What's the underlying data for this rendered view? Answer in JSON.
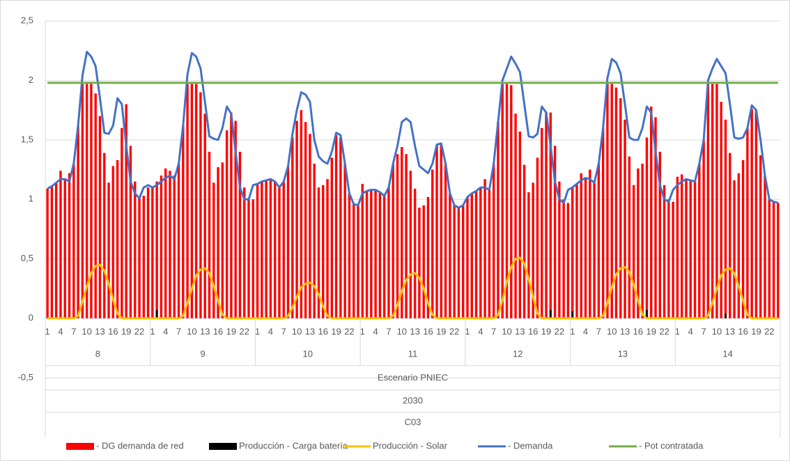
{
  "chart_data": {
    "type": "bar-line",
    "categories": [
      "1",
      null,
      null,
      "4",
      null,
      null,
      "7",
      null,
      null,
      "10",
      null,
      null,
      "13",
      null,
      null,
      "16",
      null,
      null,
      "19",
      null,
      null,
      "22",
      null,
      null,
      "1",
      null,
      null,
      "4",
      null,
      null,
      "7",
      null,
      null,
      "10",
      null,
      null,
      "13",
      null,
      null,
      "16",
      null,
      null,
      "19",
      null,
      null,
      "22",
      null,
      null,
      "1",
      null,
      null,
      "4",
      null,
      null,
      "7",
      null,
      null,
      "10",
      null,
      null,
      "13",
      null,
      null,
      "16",
      null,
      null,
      "19",
      null,
      null,
      "22",
      null,
      null,
      "1",
      null,
      null,
      "4",
      null,
      null,
      "7",
      null,
      null,
      "10",
      null,
      null,
      "13",
      null,
      null,
      "16",
      null,
      null,
      "19",
      null,
      null,
      "22",
      null,
      null,
      "1",
      null,
      null,
      "4",
      null,
      null,
      "7",
      null,
      null,
      "10",
      null,
      null,
      "13",
      null,
      null,
      "16",
      null,
      null,
      "19",
      null,
      null,
      "22",
      null,
      null,
      "1",
      null,
      null,
      "4",
      null,
      null,
      "7",
      null,
      null,
      "10",
      null,
      null,
      "13",
      null,
      null,
      "16",
      null,
      null,
      "19",
      null,
      null,
      "22",
      null,
      null,
      "1",
      null,
      null,
      "4",
      null,
      null,
      "7",
      null,
      null,
      "10",
      null,
      null,
      "13",
      null,
      null,
      "16",
      null,
      null,
      "19",
      null,
      null,
      "22",
      null,
      null
    ],
    "groups": [
      "8",
      "9",
      "10",
      "11",
      "12",
      "13",
      "14"
    ],
    "x_levels": [
      "Escenario PNIEC",
      "2030",
      "C03"
    ],
    "ylim": [
      -1,
      2.5
    ],
    "yticks": [
      {
        "value": -0.5,
        "label": "-0,5"
      },
      0,
      {
        "value": 0.5,
        "label": "0,5"
      },
      1,
      {
        "value": 1.5,
        "label": "1,5"
      },
      2,
      {
        "value": 2.5,
        "label": "2,5"
      }
    ],
    "grid": true,
    "series": [
      {
        "name": "- DG demanda de red",
        "kind": "bar",
        "color": "#ff0000",
        "values": [
          1.09,
          1.11,
          1.14,
          1.24,
          1.17,
          1.22,
          1.3,
          1.62,
          1.97,
          1.97,
          1.97,
          1.89,
          1.7,
          1.39,
          1.14,
          1.28,
          1.33,
          1.6,
          1.8,
          1.45,
          1.15,
          1.02,
          1.03,
          1.1,
          1.1,
          1.15,
          1.2,
          1.26,
          1.24,
          1.2,
          1.3,
          1.62,
          1.97,
          1.97,
          1.97,
          1.9,
          1.72,
          1.4,
          1.14,
          1.27,
          1.31,
          1.58,
          1.73,
          1.66,
          1.4,
          1.1,
          1.0,
          1.0,
          1.13,
          1.15,
          1.16,
          1.17,
          1.15,
          1.1,
          1.15,
          1.28,
          1.52,
          1.66,
          1.75,
          1.65,
          1.55,
          1.3,
          1.1,
          1.12,
          1.17,
          1.35,
          1.54,
          1.52,
          1.3,
          1.05,
          0.96,
          0.95,
          1.13,
          1.07,
          1.08,
          1.08,
          1.06,
          1.03,
          1.1,
          1.3,
          1.38,
          1.44,
          1.38,
          1.24,
          1.09,
          0.93,
          0.95,
          1.02,
          1.25,
          1.46,
          1.47,
          1.3,
          1.05,
          0.95,
          0.93,
          0.95,
          1.02,
          1.05,
          1.07,
          1.1,
          1.17,
          1.08,
          1.3,
          1.65,
          1.97,
          1.97,
          1.96,
          1.72,
          1.57,
          1.29,
          1.06,
          1.14,
          1.35,
          1.6,
          1.73,
          1.73,
          1.45,
          1.15,
          1.0,
          0.97,
          1.1,
          1.13,
          1.22,
          1.18,
          1.25,
          1.14,
          1.3,
          1.6,
          1.97,
          1.97,
          1.94,
          1.85,
          1.67,
          1.36,
          1.12,
          1.26,
          1.3,
          1.52,
          1.78,
          1.69,
          1.4,
          1.12,
          1.0,
          0.98,
          1.19,
          1.21,
          1.17,
          1.16,
          1.15,
          1.3,
          1.5,
          1.97,
          1.97,
          1.97,
          1.82,
          1.67,
          1.39,
          1.16,
          1.22,
          1.33,
          1.6,
          1.76,
          1.75,
          1.37,
          1.2,
          1.0,
          0.98,
          0.97
        ]
      },
      {
        "name": "Producción - Carga batería",
        "kind": "bar",
        "color": "#000000",
        "values": [
          0,
          0,
          0,
          0,
          0,
          0,
          0,
          0,
          0,
          0,
          0,
          0,
          0,
          0,
          0,
          0,
          0,
          0,
          0,
          0,
          0,
          0,
          0,
          0,
          0,
          0.07,
          0,
          0,
          0,
          0,
          0,
          0,
          0,
          0,
          0,
          0,
          0,
          0,
          0,
          0,
          0,
          0,
          0,
          0,
          0,
          0,
          0,
          0,
          0,
          0,
          0,
          0,
          0,
          0,
          0,
          0,
          0,
          0,
          0,
          0,
          0,
          0,
          0,
          0,
          0,
          0,
          0,
          0,
          0,
          0,
          0,
          0,
          0,
          0,
          0,
          0,
          0,
          0,
          0,
          0,
          0,
          0,
          0,
          0,
          0,
          0,
          0,
          0,
          0,
          0,
          0,
          0,
          0,
          0,
          0,
          0,
          0,
          0,
          0,
          0,
          0,
          0,
          0,
          0,
          0,
          0,
          0,
          0,
          0,
          0,
          0,
          0,
          0,
          0,
          0,
          0.07,
          0,
          0,
          0,
          0,
          0.06,
          0,
          0,
          0,
          0,
          0,
          0,
          0,
          0,
          0,
          0,
          0,
          0,
          0,
          0,
          0,
          0,
          0.07,
          0,
          0,
          0,
          0,
          0,
          0,
          0,
          0,
          0,
          0,
          0,
          0,
          0,
          0,
          0,
          0,
          0,
          0.04,
          0,
          0,
          0,
          0,
          0,
          0,
          0,
          0,
          0,
          0,
          0,
          0
        ]
      },
      {
        "name": "Producción - Solar",
        "kind": "line",
        "color": "#ffc000",
        "values": [
          0,
          0,
          0,
          0,
          0,
          0,
          0,
          0.02,
          0.14,
          0.27,
          0.38,
          0.44,
          0.45,
          0.4,
          0.29,
          0.16,
          0.04,
          0,
          0,
          0,
          0,
          0,
          0,
          0,
          0,
          0,
          0,
          0,
          0,
          0,
          0,
          0.02,
          0.13,
          0.25,
          0.36,
          0.41,
          0.42,
          0.38,
          0.27,
          0.15,
          0.03,
          0,
          0,
          0,
          0,
          0,
          0,
          0,
          0,
          0,
          0,
          0,
          0,
          0,
          0,
          0.02,
          0.09,
          0.18,
          0.26,
          0.29,
          0.3,
          0.27,
          0.2,
          0.1,
          0.02,
          0,
          0,
          0,
          0,
          0,
          0,
          0,
          0,
          0,
          0,
          0,
          0,
          0,
          0,
          0.02,
          0.11,
          0.23,
          0.32,
          0.37,
          0.38,
          0.34,
          0.25,
          0.13,
          0.03,
          0,
          0,
          0,
          0,
          0,
          0,
          0,
          0,
          0,
          0,
          0,
          0,
          0,
          0,
          0.03,
          0.15,
          0.31,
          0.43,
          0.5,
          0.51,
          0.46,
          0.33,
          0.18,
          0.04,
          0,
          0,
          0,
          0,
          0,
          0,
          0,
          0,
          0,
          0,
          0,
          0,
          0,
          0,
          0.02,
          0.13,
          0.26,
          0.37,
          0.42,
          0.43,
          0.39,
          0.28,
          0.15,
          0.03,
          0,
          0,
          0,
          0,
          0,
          0,
          0,
          0,
          0,
          0,
          0,
          0,
          0,
          0,
          0.02,
          0.13,
          0.25,
          0.36,
          0.41,
          0.42,
          0.38,
          0.27,
          0.15,
          0.03,
          0,
          0,
          0,
          0,
          0,
          0,
          0
        ]
      },
      {
        "name": "- Demanda",
        "kind": "line",
        "color": "#4472c4",
        "values": [
          1.09,
          1.11,
          1.14,
          1.17,
          1.17,
          1.15,
          1.3,
          1.62,
          2.04,
          2.24,
          2.2,
          2.12,
          1.85,
          1.56,
          1.55,
          1.62,
          1.85,
          1.8,
          1.45,
          1.15,
          1.05,
          1.01,
          1.1,
          1.12,
          1.1,
          1.12,
          1.15,
          1.18,
          1.2,
          1.17,
          1.3,
          1.62,
          2.05,
          2.23,
          2.2,
          2.1,
          1.82,
          1.53,
          1.51,
          1.5,
          1.6,
          1.78,
          1.72,
          1.4,
          1.1,
          1.0,
          1.0,
          1.12,
          1.13,
          1.15,
          1.16,
          1.17,
          1.15,
          1.1,
          1.15,
          1.28,
          1.55,
          1.75,
          1.9,
          1.88,
          1.82,
          1.5,
          1.36,
          1.32,
          1.3,
          1.4,
          1.56,
          1.54,
          1.3,
          1.05,
          0.96,
          0.95,
          1.05,
          1.07,
          1.08,
          1.08,
          1.06,
          1.03,
          1.1,
          1.3,
          1.45,
          1.65,
          1.68,
          1.65,
          1.45,
          1.28,
          1.25,
          1.22,
          1.3,
          1.46,
          1.47,
          1.3,
          1.05,
          0.95,
          0.93,
          0.95,
          1.02,
          1.05,
          1.07,
          1.1,
          1.1,
          1.08,
          1.3,
          1.65,
          2.0,
          2.1,
          2.2,
          2.14,
          2.07,
          1.8,
          1.53,
          1.52,
          1.55,
          1.78,
          1.73,
          1.45,
          1.15,
          1.0,
          0.97,
          1.08,
          1.1,
          1.13,
          1.16,
          1.18,
          1.17,
          1.14,
          1.3,
          1.6,
          2.02,
          2.18,
          2.15,
          2.06,
          1.8,
          1.52,
          1.5,
          1.5,
          1.6,
          1.78,
          1.73,
          1.4,
          1.12,
          1.0,
          0.98,
          1.08,
          1.12,
          1.15,
          1.17,
          1.16,
          1.15,
          1.3,
          1.5,
          2.0,
          2.1,
          2.18,
          2.12,
          2.06,
          1.8,
          1.52,
          1.51,
          1.52,
          1.6,
          1.79,
          1.75,
          1.5,
          1.2,
          1.0,
          0.98,
          0.97
        ]
      },
      {
        "name": "- Pot contratada",
        "kind": "line",
        "color": "#70ad47",
        "values": [
          1.98,
          1.98,
          1.98,
          1.98,
          1.98,
          1.98,
          1.98,
          1.98,
          1.98,
          1.98,
          1.98,
          1.98,
          1.98,
          1.98,
          1.98,
          1.98,
          1.98,
          1.98,
          1.98,
          1.98,
          1.98,
          1.98,
          1.98,
          1.98,
          1.98,
          1.98,
          1.98,
          1.98,
          1.98,
          1.98,
          1.98,
          1.98,
          1.98,
          1.98,
          1.98,
          1.98,
          1.98,
          1.98,
          1.98,
          1.98,
          1.98,
          1.98,
          1.98,
          1.98,
          1.98,
          1.98,
          1.98,
          1.98,
          1.98,
          1.98,
          1.98,
          1.98,
          1.98,
          1.98,
          1.98,
          1.98,
          1.98,
          1.98,
          1.98,
          1.98,
          1.98,
          1.98,
          1.98,
          1.98,
          1.98,
          1.98,
          1.98,
          1.98,
          1.98,
          1.98,
          1.98,
          1.98,
          1.98,
          1.98,
          1.98,
          1.98,
          1.98,
          1.98,
          1.98,
          1.98,
          1.98,
          1.98,
          1.98,
          1.98,
          1.98,
          1.98,
          1.98,
          1.98,
          1.98,
          1.98,
          1.98,
          1.98,
          1.98,
          1.98,
          1.98,
          1.98,
          1.98,
          1.98,
          1.98,
          1.98,
          1.98,
          1.98,
          1.98,
          1.98,
          1.98,
          1.98,
          1.98,
          1.98,
          1.98,
          1.98,
          1.98,
          1.98,
          1.98,
          1.98,
          1.98,
          1.98,
          1.98,
          1.98,
          1.98,
          1.98,
          1.98,
          1.98,
          1.98,
          1.98,
          1.98,
          1.98,
          1.98,
          1.98,
          1.98,
          1.98,
          1.98,
          1.98,
          1.98,
          1.98,
          1.98,
          1.98,
          1.98,
          1.98,
          1.98,
          1.98,
          1.98,
          1.98,
          1.98,
          1.98,
          1.98,
          1.98,
          1.98,
          1.98,
          1.98,
          1.98,
          1.98,
          1.98,
          1.98,
          1.98,
          1.98,
          1.98,
          1.98,
          1.98,
          1.98,
          1.98,
          1.98,
          1.98,
          1.98,
          1.98,
          1.98,
          1.98,
          1.98,
          1.98
        ]
      }
    ]
  }
}
